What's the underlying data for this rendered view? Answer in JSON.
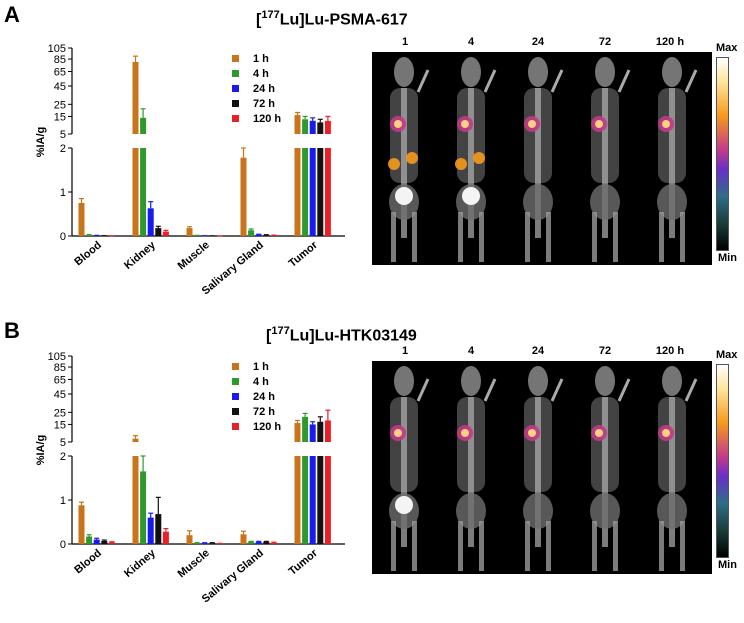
{
  "panels": [
    {
      "letter": "A",
      "title_isotope": "177",
      "title_main": "Lu]Lu-PSMA-617",
      "image_timepoints": [
        "1",
        "4",
        "24",
        "72",
        "120 h"
      ],
      "colorbar": {
        "max": "Max",
        "min": "Min"
      }
    },
    {
      "letter": "B",
      "title_isotope": "177",
      "title_main": "Lu]Lu-HTK03149",
      "image_timepoints": [
        "1",
        "4",
        "24",
        "72",
        "120 h"
      ],
      "colorbar": {
        "max": "Max",
        "min": "Min"
      }
    }
  ],
  "colors": {
    "1 h": "#c8741a",
    "4 h": "#2e9a2e",
    "24 h": "#1a1aee",
    "72 h": "#111111",
    "120 h": "#e8202a"
  },
  "chart_data": [
    {
      "type": "bar",
      "title": "[177Lu]Lu-PSMA-617",
      "ylabel": "%IA/g",
      "categories": [
        "Blood",
        "Kidney",
        "Muscle",
        "Salivary Gland",
        "Tumor"
      ],
      "axis_break": {
        "lower_range": [
          0,
          2
        ],
        "upper_range": [
          5,
          105
        ]
      },
      "lower_ticks": [
        "0",
        "1",
        "2"
      ],
      "upper_ticks": [
        "5",
        "15",
        "25",
        "45",
        "65",
        "85",
        "105"
      ],
      "legend": [
        "1 h",
        "4 h",
        "24 h",
        "72 h",
        "120 h"
      ],
      "series": [
        {
          "name": "1 h",
          "values": [
            0.75,
            80,
            0.18,
            1.78,
            16
          ],
          "errors": [
            0.1,
            10,
            0.03,
            0.22,
            2
          ]
        },
        {
          "name": "4 h",
          "values": [
            0.02,
            14,
            0.01,
            0.13,
            13
          ],
          "errors": [
            0.01,
            7,
            0.005,
            0.03,
            2
          ]
        },
        {
          "name": "24 h",
          "values": [
            0.01,
            0.63,
            0.005,
            0.03,
            12
          ],
          "errors": [
            0.005,
            0.15,
            0.002,
            0.01,
            2
          ]
        },
        {
          "name": "72 h",
          "values": [
            0.005,
            0.18,
            0.003,
            0.02,
            11
          ],
          "errors": [
            0.002,
            0.04,
            0.001,
            0.01,
            2
          ]
        },
        {
          "name": "120 h",
          "values": [
            0.005,
            0.1,
            0.002,
            0.01,
            12
          ],
          "errors": [
            0.002,
            0.03,
            0.001,
            0.01,
            3
          ]
        }
      ]
    },
    {
      "type": "bar",
      "title": "[177Lu]Lu-HTK03149",
      "ylabel": "%IA/g",
      "categories": [
        "Blood",
        "Kidney",
        "Muscle",
        "Salivary Gland",
        "Tumor"
      ],
      "axis_break": {
        "lower_range": [
          0,
          2
        ],
        "upper_range": [
          5,
          105
        ]
      },
      "lower_ticks": [
        "0",
        "1",
        "2"
      ],
      "upper_ticks": [
        "5",
        "15",
        "25",
        "45",
        "65",
        "85",
        "105"
      ],
      "legend": [
        "1 h",
        "4 h",
        "24 h",
        "72 h",
        "120 h"
      ],
      "series": [
        {
          "name": "1 h",
          "values": [
            0.88,
            6.5,
            0.2,
            0.22,
            16
          ],
          "errors": [
            0.07,
            1.5,
            0.1,
            0.07,
            2
          ]
        },
        {
          "name": "4 h",
          "values": [
            0.17,
            1.65,
            0.02,
            0.05,
            21
          ],
          "errors": [
            0.04,
            0.35,
            0.01,
            0.01,
            3
          ]
        },
        {
          "name": "24 h",
          "values": [
            0.1,
            0.6,
            0.02,
            0.05,
            15
          ],
          "errors": [
            0.03,
            0.1,
            0.01,
            0.01,
            2
          ]
        },
        {
          "name": "72 h",
          "values": [
            0.07,
            0.68,
            0.02,
            0.05,
            17
          ],
          "errors": [
            0.02,
            0.38,
            0.01,
            0.01,
            4
          ]
        },
        {
          "name": "120 h",
          "values": [
            0.04,
            0.28,
            0.01,
            0.03,
            18
          ],
          "errors": [
            0.01,
            0.07,
            0.005,
            0.01,
            9
          ]
        }
      ]
    }
  ]
}
